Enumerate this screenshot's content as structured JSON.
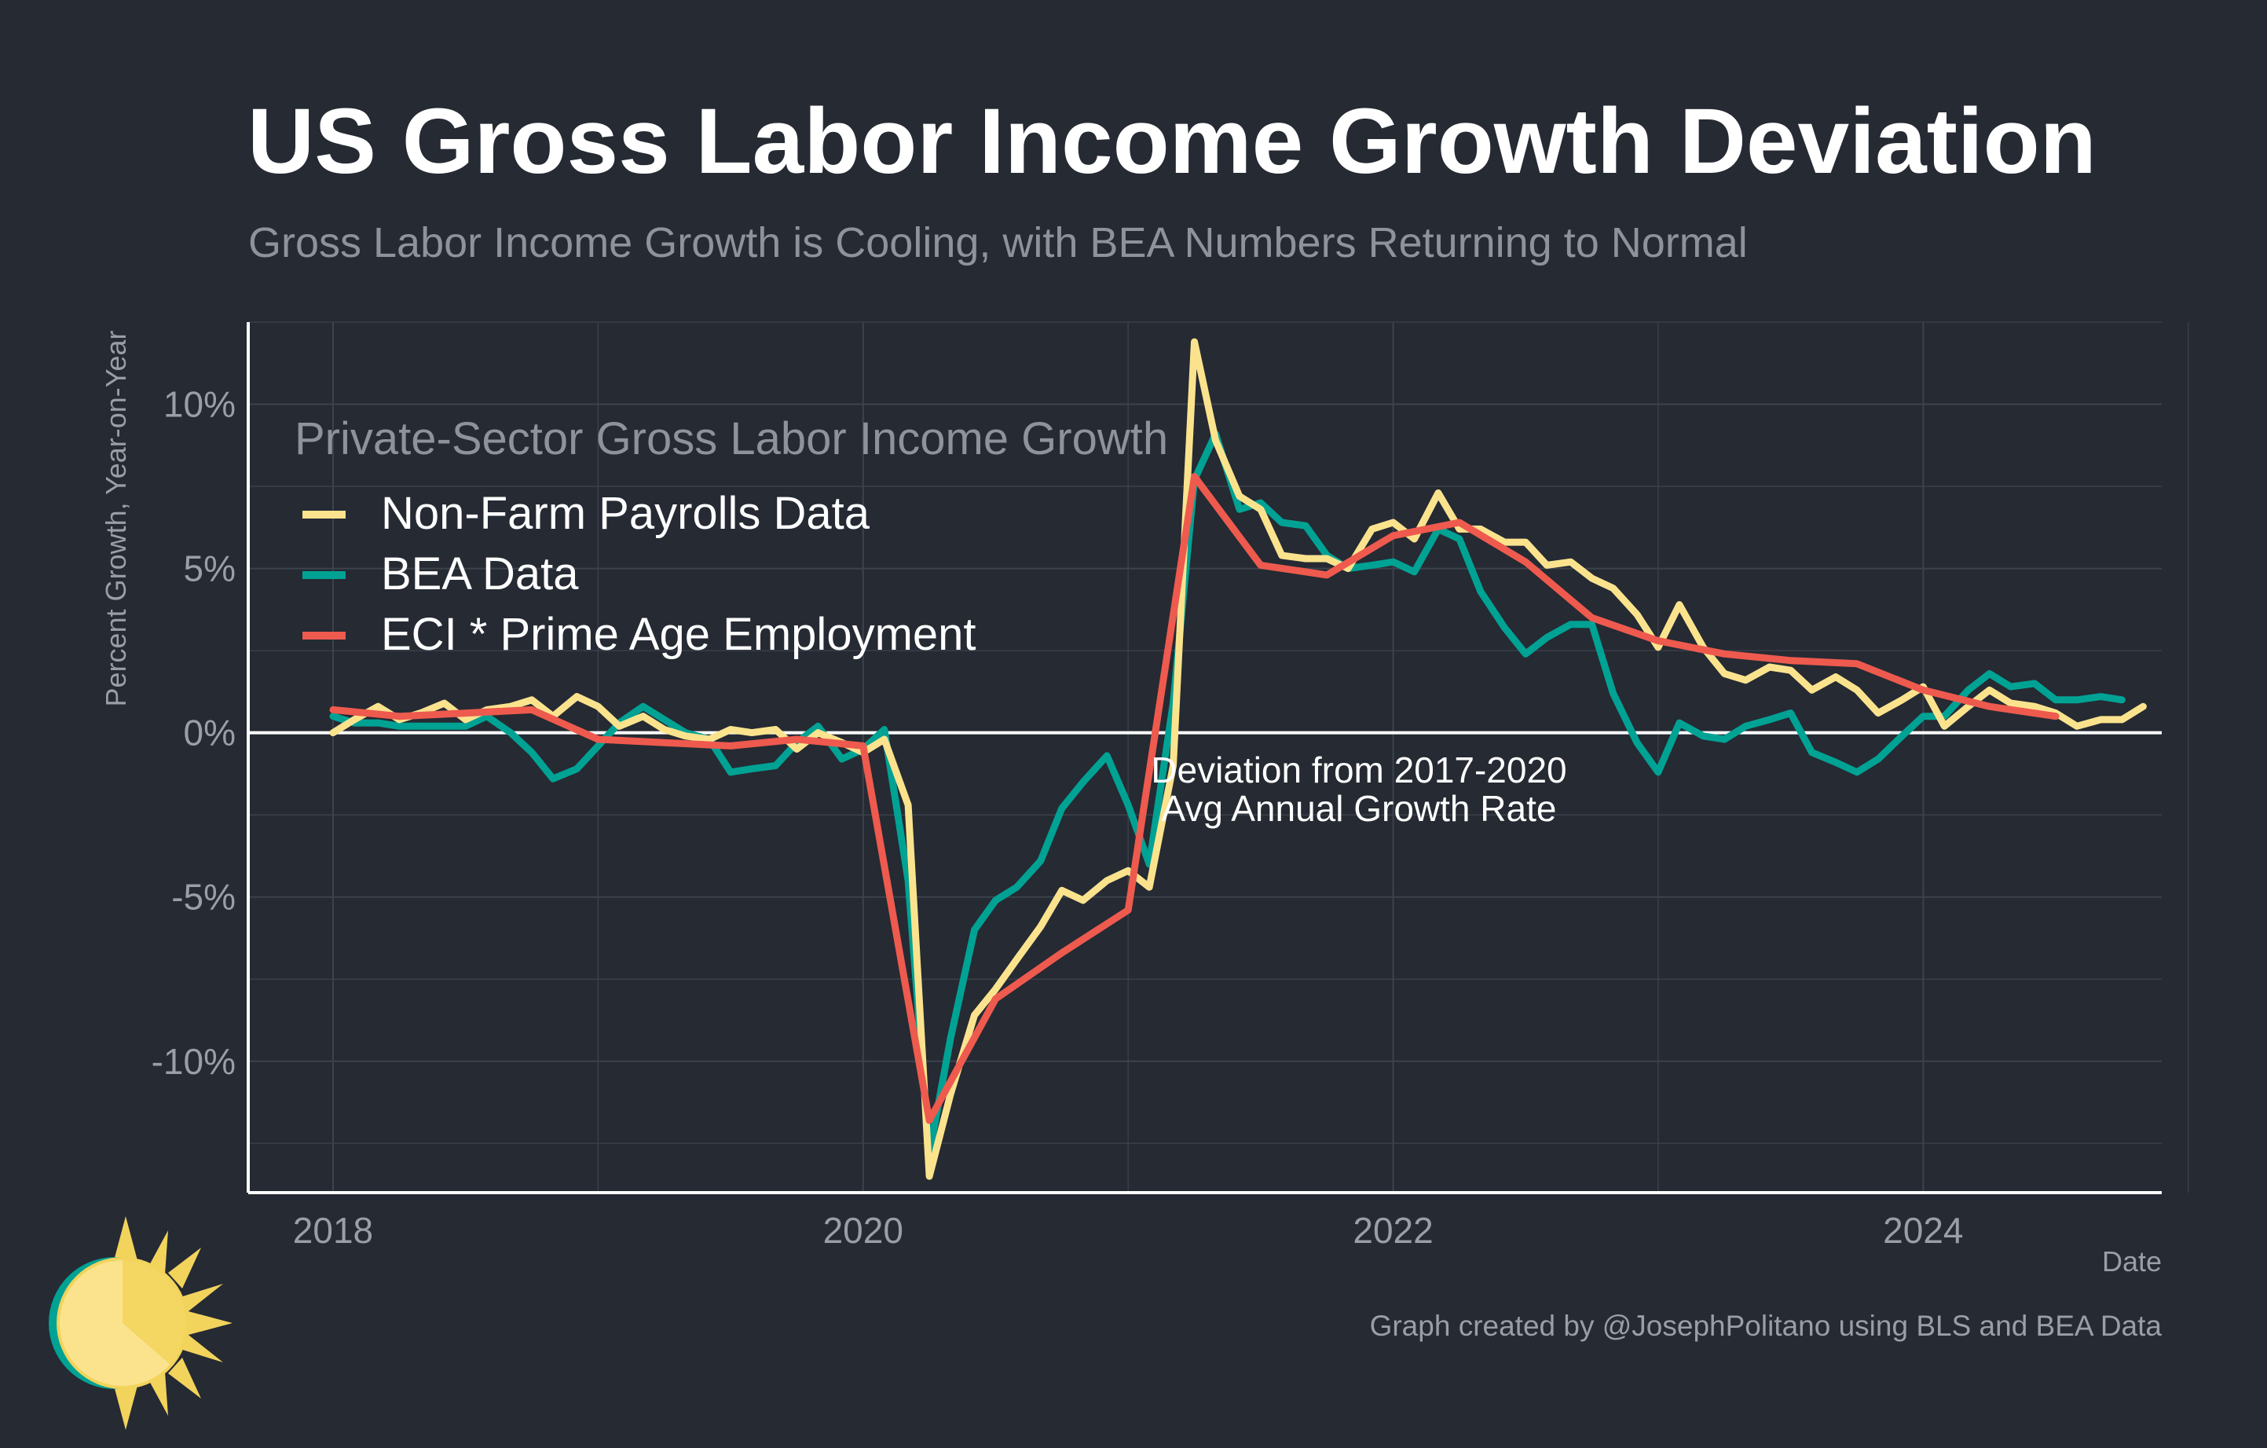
{
  "title": "US Gross Labor Income Growth Deviation",
  "subtitle": "Gross Labor Income Growth is Cooling, with BEA Numbers Returning to Normal",
  "caption": "Graph created by @JosephPolitano using BLS and BEA Data",
  "colors": {
    "background": "#252a33",
    "grid": "#3d434c",
    "axis": "#ffffff"
  },
  "logo_icon": "sun-logo-icon",
  "chart_data": {
    "type": "line",
    "title": "US Gross Labor Income Growth Deviation",
    "subtitle": "Gross Labor Income Growth is Cooling, with BEA Numbers Returning to Normal",
    "xlabel": "Date",
    "ylabel": "Percent Growth, Year-on-Year",
    "xlim": [
      2017.68,
      2024.9
    ],
    "ylim": [
      -14.0,
      12.5
    ],
    "x_ticks": [
      2018,
      2020,
      2022,
      2024
    ],
    "x_tick_labels": [
      "2018",
      "2020",
      "2022",
      "2024"
    ],
    "y_ticks": [
      10,
      5,
      0,
      -5,
      -10
    ],
    "y_tick_labels": [
      "10%",
      "5%",
      "0%",
      "-5%",
      "-10%"
    ],
    "grid": true,
    "legend": {
      "title": "Private-Sector Gross Labor Income Growth",
      "placement": "top-left"
    },
    "annotation": {
      "lines": [
        "Deviation from 2017-2020",
        "Avg Annual Growth Rate"
      ],
      "x": 2020.99,
      "y": -1.2
    },
    "series": [
      {
        "name": "Non-Farm Payrolls Data",
        "color": "#fbe38e",
        "points": [
          [
            2018.0,
            0.0
          ],
          [
            2018.08,
            0.4
          ],
          [
            2018.17,
            0.8
          ],
          [
            2018.25,
            0.4
          ],
          [
            2018.33,
            0.6
          ],
          [
            2018.42,
            0.9
          ],
          [
            2018.5,
            0.4
          ],
          [
            2018.58,
            0.7
          ],
          [
            2018.67,
            0.8
          ],
          [
            2018.75,
            1.0
          ],
          [
            2018.83,
            0.5
          ],
          [
            2018.92,
            1.1
          ],
          [
            2019.0,
            0.8
          ],
          [
            2019.08,
            0.2
          ],
          [
            2019.17,
            0.5
          ],
          [
            2019.25,
            0.1
          ],
          [
            2019.33,
            -0.1
          ],
          [
            2019.42,
            -0.2
          ],
          [
            2019.5,
            0.1
          ],
          [
            2019.58,
            0.0
          ],
          [
            2019.67,
            0.1
          ],
          [
            2019.75,
            -0.5
          ],
          [
            2019.83,
            0.0
          ],
          [
            2019.92,
            -0.3
          ],
          [
            2020.0,
            -0.6
          ],
          [
            2020.08,
            -0.2
          ],
          [
            2020.17,
            -2.2
          ],
          [
            2020.25,
            -13.5
          ],
          [
            2020.33,
            -11.0
          ],
          [
            2020.42,
            -8.6
          ],
          [
            2020.5,
            -7.8
          ],
          [
            2020.58,
            -6.9
          ],
          [
            2020.67,
            -5.9
          ],
          [
            2020.75,
            -4.8
          ],
          [
            2020.83,
            -5.1
          ],
          [
            2020.92,
            -4.5
          ],
          [
            2021.0,
            -4.2
          ],
          [
            2021.08,
            -4.7
          ],
          [
            2021.17,
            -1.0
          ],
          [
            2021.25,
            11.9
          ],
          [
            2021.33,
            8.9
          ],
          [
            2021.42,
            7.2
          ],
          [
            2021.5,
            6.8
          ],
          [
            2021.58,
            5.4
          ],
          [
            2021.67,
            5.3
          ],
          [
            2021.75,
            5.3
          ],
          [
            2021.83,
            5.0
          ],
          [
            2021.92,
            6.2
          ],
          [
            2022.0,
            6.4
          ],
          [
            2022.08,
            5.9
          ],
          [
            2022.17,
            7.3
          ],
          [
            2022.25,
            6.2
          ],
          [
            2022.33,
            6.2
          ],
          [
            2022.42,
            5.8
          ],
          [
            2022.5,
            5.8
          ],
          [
            2022.58,
            5.1
          ],
          [
            2022.67,
            5.2
          ],
          [
            2022.75,
            4.7
          ],
          [
            2022.83,
            4.4
          ],
          [
            2022.92,
            3.6
          ],
          [
            2023.0,
            2.6
          ],
          [
            2023.08,
            3.9
          ],
          [
            2023.17,
            2.6
          ],
          [
            2023.25,
            1.8
          ],
          [
            2023.33,
            1.6
          ],
          [
            2023.42,
            2.0
          ],
          [
            2023.5,
            1.9
          ],
          [
            2023.58,
            1.3
          ],
          [
            2023.67,
            1.7
          ],
          [
            2023.75,
            1.3
          ],
          [
            2023.83,
            0.6
          ],
          [
            2023.92,
            1.0
          ],
          [
            2024.0,
            1.4
          ],
          [
            2024.08,
            0.2
          ],
          [
            2024.17,
            0.8
          ],
          [
            2024.25,
            1.3
          ],
          [
            2024.33,
            0.9
          ],
          [
            2024.42,
            0.8
          ],
          [
            2024.5,
            0.6
          ],
          [
            2024.58,
            0.2
          ],
          [
            2024.67,
            0.4
          ],
          [
            2024.75,
            0.4
          ],
          [
            2024.83,
            0.8
          ]
        ]
      },
      {
        "name": "BEA Data",
        "color": "#00a294",
        "points": [
          [
            2018.0,
            0.5
          ],
          [
            2018.08,
            0.3
          ],
          [
            2018.17,
            0.3
          ],
          [
            2018.25,
            0.2
          ],
          [
            2018.33,
            0.2
          ],
          [
            2018.42,
            0.2
          ],
          [
            2018.5,
            0.2
          ],
          [
            2018.58,
            0.5
          ],
          [
            2018.67,
            0.0
          ],
          [
            2018.75,
            -0.6
          ],
          [
            2018.83,
            -1.4
          ],
          [
            2018.92,
            -1.1
          ],
          [
            2019.0,
            -0.4
          ],
          [
            2019.08,
            0.3
          ],
          [
            2019.17,
            0.8
          ],
          [
            2019.25,
            0.4
          ],
          [
            2019.33,
            0.0
          ],
          [
            2019.42,
            -0.2
          ],
          [
            2019.5,
            -1.2
          ],
          [
            2019.58,
            -1.1
          ],
          [
            2019.67,
            -1.0
          ],
          [
            2019.75,
            -0.3
          ],
          [
            2019.83,
            0.2
          ],
          [
            2019.92,
            -0.8
          ],
          [
            2020.0,
            -0.5
          ],
          [
            2020.08,
            0.1
          ],
          [
            2020.17,
            -4.5
          ],
          [
            2020.25,
            -12.8
          ],
          [
            2020.33,
            -9.3
          ],
          [
            2020.42,
            -6.0
          ],
          [
            2020.5,
            -5.1
          ],
          [
            2020.58,
            -4.7
          ],
          [
            2020.67,
            -3.9
          ],
          [
            2020.75,
            -2.3
          ],
          [
            2020.83,
            -1.5
          ],
          [
            2020.92,
            -0.7
          ],
          [
            2021.0,
            -2.2
          ],
          [
            2021.08,
            -4.0
          ],
          [
            2021.17,
            0.9
          ],
          [
            2021.25,
            7.7
          ],
          [
            2021.33,
            9.1
          ],
          [
            2021.42,
            6.8
          ],
          [
            2021.5,
            7.0
          ],
          [
            2021.58,
            6.4
          ],
          [
            2021.67,
            6.3
          ],
          [
            2021.75,
            5.4
          ],
          [
            2021.83,
            5.0
          ],
          [
            2021.92,
            5.1
          ],
          [
            2022.0,
            5.2
          ],
          [
            2022.08,
            4.9
          ],
          [
            2022.17,
            6.2
          ],
          [
            2022.25,
            5.9
          ],
          [
            2022.33,
            4.3
          ],
          [
            2022.42,
            3.2
          ],
          [
            2022.5,
            2.4
          ],
          [
            2022.58,
            2.9
          ],
          [
            2022.67,
            3.3
          ],
          [
            2022.75,
            3.3
          ],
          [
            2022.83,
            1.2
          ],
          [
            2022.92,
            -0.3
          ],
          [
            2023.0,
            -1.2
          ],
          [
            2023.08,
            0.3
          ],
          [
            2023.17,
            -0.1
          ],
          [
            2023.25,
            -0.2
          ],
          [
            2023.33,
            0.2
          ],
          [
            2023.42,
            0.4
          ],
          [
            2023.5,
            0.6
          ],
          [
            2023.58,
            -0.6
          ],
          [
            2023.67,
            -0.9
          ],
          [
            2023.75,
            -1.2
          ],
          [
            2023.83,
            -0.8
          ],
          [
            2023.92,
            -0.1
          ],
          [
            2024.0,
            0.5
          ],
          [
            2024.08,
            0.5
          ],
          [
            2024.17,
            1.3
          ],
          [
            2024.25,
            1.8
          ],
          [
            2024.33,
            1.4
          ],
          [
            2024.42,
            1.5
          ],
          [
            2024.5,
            1.0
          ],
          [
            2024.58,
            1.0
          ],
          [
            2024.67,
            1.1
          ],
          [
            2024.75,
            1.0
          ]
        ]
      },
      {
        "name": "ECI * Prime Age Employment",
        "color": "#ee5a4e",
        "points": [
          [
            2018.0,
            0.7
          ],
          [
            2018.25,
            0.5
          ],
          [
            2018.5,
            0.6
          ],
          [
            2018.75,
            0.7
          ],
          [
            2019.0,
            -0.2
          ],
          [
            2019.25,
            -0.3
          ],
          [
            2019.5,
            -0.4
          ],
          [
            2019.75,
            -0.2
          ],
          [
            2020.0,
            -0.4
          ],
          [
            2020.25,
            -11.8
          ],
          [
            2020.5,
            -8.1
          ],
          [
            2020.75,
            -6.7
          ],
          [
            2021.0,
            -5.4
          ],
          [
            2021.25,
            7.8
          ],
          [
            2021.5,
            5.1
          ],
          [
            2021.75,
            4.8
          ],
          [
            2022.0,
            6.0
          ],
          [
            2022.25,
            6.4
          ],
          [
            2022.5,
            5.2
          ],
          [
            2022.75,
            3.5
          ],
          [
            2023.0,
            2.8
          ],
          [
            2023.25,
            2.4
          ],
          [
            2023.5,
            2.2
          ],
          [
            2023.75,
            2.1
          ],
          [
            2024.0,
            1.3
          ],
          [
            2024.25,
            0.8
          ],
          [
            2024.5,
            0.5
          ]
        ]
      }
    ]
  }
}
